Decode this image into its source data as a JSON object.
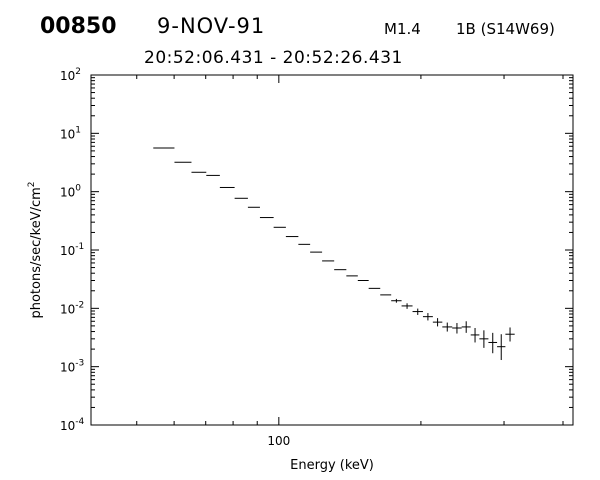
{
  "header": {
    "event_id": "00850",
    "date": "9-NOV-91",
    "flare_class": "M1.4",
    "flare_optical": "1B (S14W69)",
    "time_range": "20:52:06.431 - 20:52:26.431"
  },
  "chart_data": {
    "type": "scatter",
    "xlabel": "Energy (keV)",
    "ylabel": "photons/sec/keV/cm",
    "ylabel_superscript": "2",
    "x_scale": "log",
    "y_scale": "log",
    "xlim": [
      40,
      420
    ],
    "ylim": [
      0.0001,
      100
    ],
    "x_tick_labels": [
      {
        "value": 100,
        "label": "100"
      }
    ],
    "y_tick_labels": [
      {
        "value": 0.0001,
        "base": "10",
        "exp": "-4"
      },
      {
        "value": 0.001,
        "base": "10",
        "exp": "-3"
      },
      {
        "value": 0.01,
        "base": "10",
        "exp": "-2"
      },
      {
        "value": 0.1,
        "base": "10",
        "exp": "-1"
      },
      {
        "value": 1,
        "base": "10",
        "exp": "0"
      },
      {
        "value": 10,
        "base": "10",
        "exp": "1"
      },
      {
        "value": 100,
        "base": "10",
        "exp": "2"
      }
    ],
    "grid": false,
    "points": [
      {
        "x_lo": 54.2,
        "x_hi": 60.1,
        "y": 5.6,
        "y_lo": 5.6,
        "y_hi": 5.6
      },
      {
        "x_lo": 60.1,
        "x_hi": 65.3,
        "y": 3.2,
        "y_lo": 3.2,
        "y_hi": 3.2
      },
      {
        "x_lo": 65.3,
        "x_hi": 70.2,
        "y": 2.15,
        "y_lo": 2.15,
        "y_hi": 2.15
      },
      {
        "x_lo": 70.2,
        "x_hi": 75.0,
        "y": 1.9,
        "y_lo": 1.9,
        "y_hi": 1.9
      },
      {
        "x_lo": 75.0,
        "x_hi": 80.6,
        "y": 1.18,
        "y_lo": 1.18,
        "y_hi": 1.18
      },
      {
        "x_lo": 80.6,
        "x_hi": 86.0,
        "y": 0.77,
        "y_lo": 0.77,
        "y_hi": 0.77
      },
      {
        "x_lo": 86.0,
        "x_hi": 91.2,
        "y": 0.54,
        "y_lo": 0.54,
        "y_hi": 0.54
      },
      {
        "x_lo": 91.2,
        "x_hi": 97.5,
        "y": 0.36,
        "y_lo": 0.36,
        "y_hi": 0.36
      },
      {
        "x_lo": 97.5,
        "x_hi": 103.5,
        "y": 0.245,
        "y_lo": 0.245,
        "y_hi": 0.245
      },
      {
        "x_lo": 103.5,
        "x_hi": 110.0,
        "y": 0.17,
        "y_lo": 0.17,
        "y_hi": 0.17
      },
      {
        "x_lo": 110.0,
        "x_hi": 116.5,
        "y": 0.125,
        "y_lo": 0.125,
        "y_hi": 0.125
      },
      {
        "x_lo": 116.5,
        "x_hi": 123.5,
        "y": 0.092,
        "y_lo": 0.092,
        "y_hi": 0.092
      },
      {
        "x_lo": 123.5,
        "x_hi": 131.0,
        "y": 0.065,
        "y_lo": 0.065,
        "y_hi": 0.065
      },
      {
        "x_lo": 131.0,
        "x_hi": 139.0,
        "y": 0.046,
        "y_lo": 0.046,
        "y_hi": 0.046
      },
      {
        "x_lo": 139.0,
        "x_hi": 147.0,
        "y": 0.036,
        "y_lo": 0.036,
        "y_hi": 0.036
      },
      {
        "x_lo": 147.0,
        "x_hi": 155.0,
        "y": 0.03,
        "y_lo": 0.03,
        "y_hi": 0.03
      },
      {
        "x_lo": 155.0,
        "x_hi": 164.0,
        "y": 0.022,
        "y_lo": 0.022,
        "y_hi": 0.022
      },
      {
        "x_lo": 164.0,
        "x_hi": 173.0,
        "y": 0.017,
        "y_lo": 0.017,
        "y_hi": 0.017
      },
      {
        "x_lo": 173.0,
        "x_hi": 182.0,
        "y": 0.0135,
        "y_lo": 0.0125,
        "y_hi": 0.0145
      },
      {
        "x_lo": 182.0,
        "x_hi": 192.0,
        "y": 0.011,
        "y_lo": 0.0098,
        "y_hi": 0.0122
      },
      {
        "x_lo": 192.0,
        "x_hi": 202.0,
        "y": 0.0088,
        "y_lo": 0.0077,
        "y_hi": 0.0099
      },
      {
        "x_lo": 202.0,
        "x_hi": 212.0,
        "y": 0.0072,
        "y_lo": 0.0062,
        "y_hi": 0.0083
      },
      {
        "x_lo": 212.0,
        "x_hi": 222.0,
        "y": 0.0058,
        "y_lo": 0.0049,
        "y_hi": 0.0068
      },
      {
        "x_lo": 222.0,
        "x_hi": 233.0,
        "y": 0.0048,
        "y_lo": 0.004,
        "y_hi": 0.0057
      },
      {
        "x_lo": 233.0,
        "x_hi": 244.0,
        "y": 0.0046,
        "y_lo": 0.0037,
        "y_hi": 0.0056
      },
      {
        "x_lo": 244.0,
        "x_hi": 255.0,
        "y": 0.0048,
        "y_lo": 0.0038,
        "y_hi": 0.006
      },
      {
        "x_lo": 255.0,
        "x_hi": 266.0,
        "y": 0.0035,
        "y_lo": 0.0026,
        "y_hi": 0.0046
      },
      {
        "x_lo": 266.0,
        "x_hi": 278.0,
        "y": 0.003,
        "y_lo": 0.0021,
        "y_hi": 0.0042
      },
      {
        "x_lo": 278.0,
        "x_hi": 290.0,
        "y": 0.0026,
        "y_lo": 0.0017,
        "y_hi": 0.0038
      },
      {
        "x_lo": 290.0,
        "x_hi": 302.0,
        "y": 0.0022,
        "y_lo": 0.0013,
        "y_hi": 0.0036
      },
      {
        "x_lo": 302.0,
        "x_hi": 316.0,
        "y": 0.0036,
        "y_lo": 0.0027,
        "y_hi": 0.0047
      }
    ]
  }
}
